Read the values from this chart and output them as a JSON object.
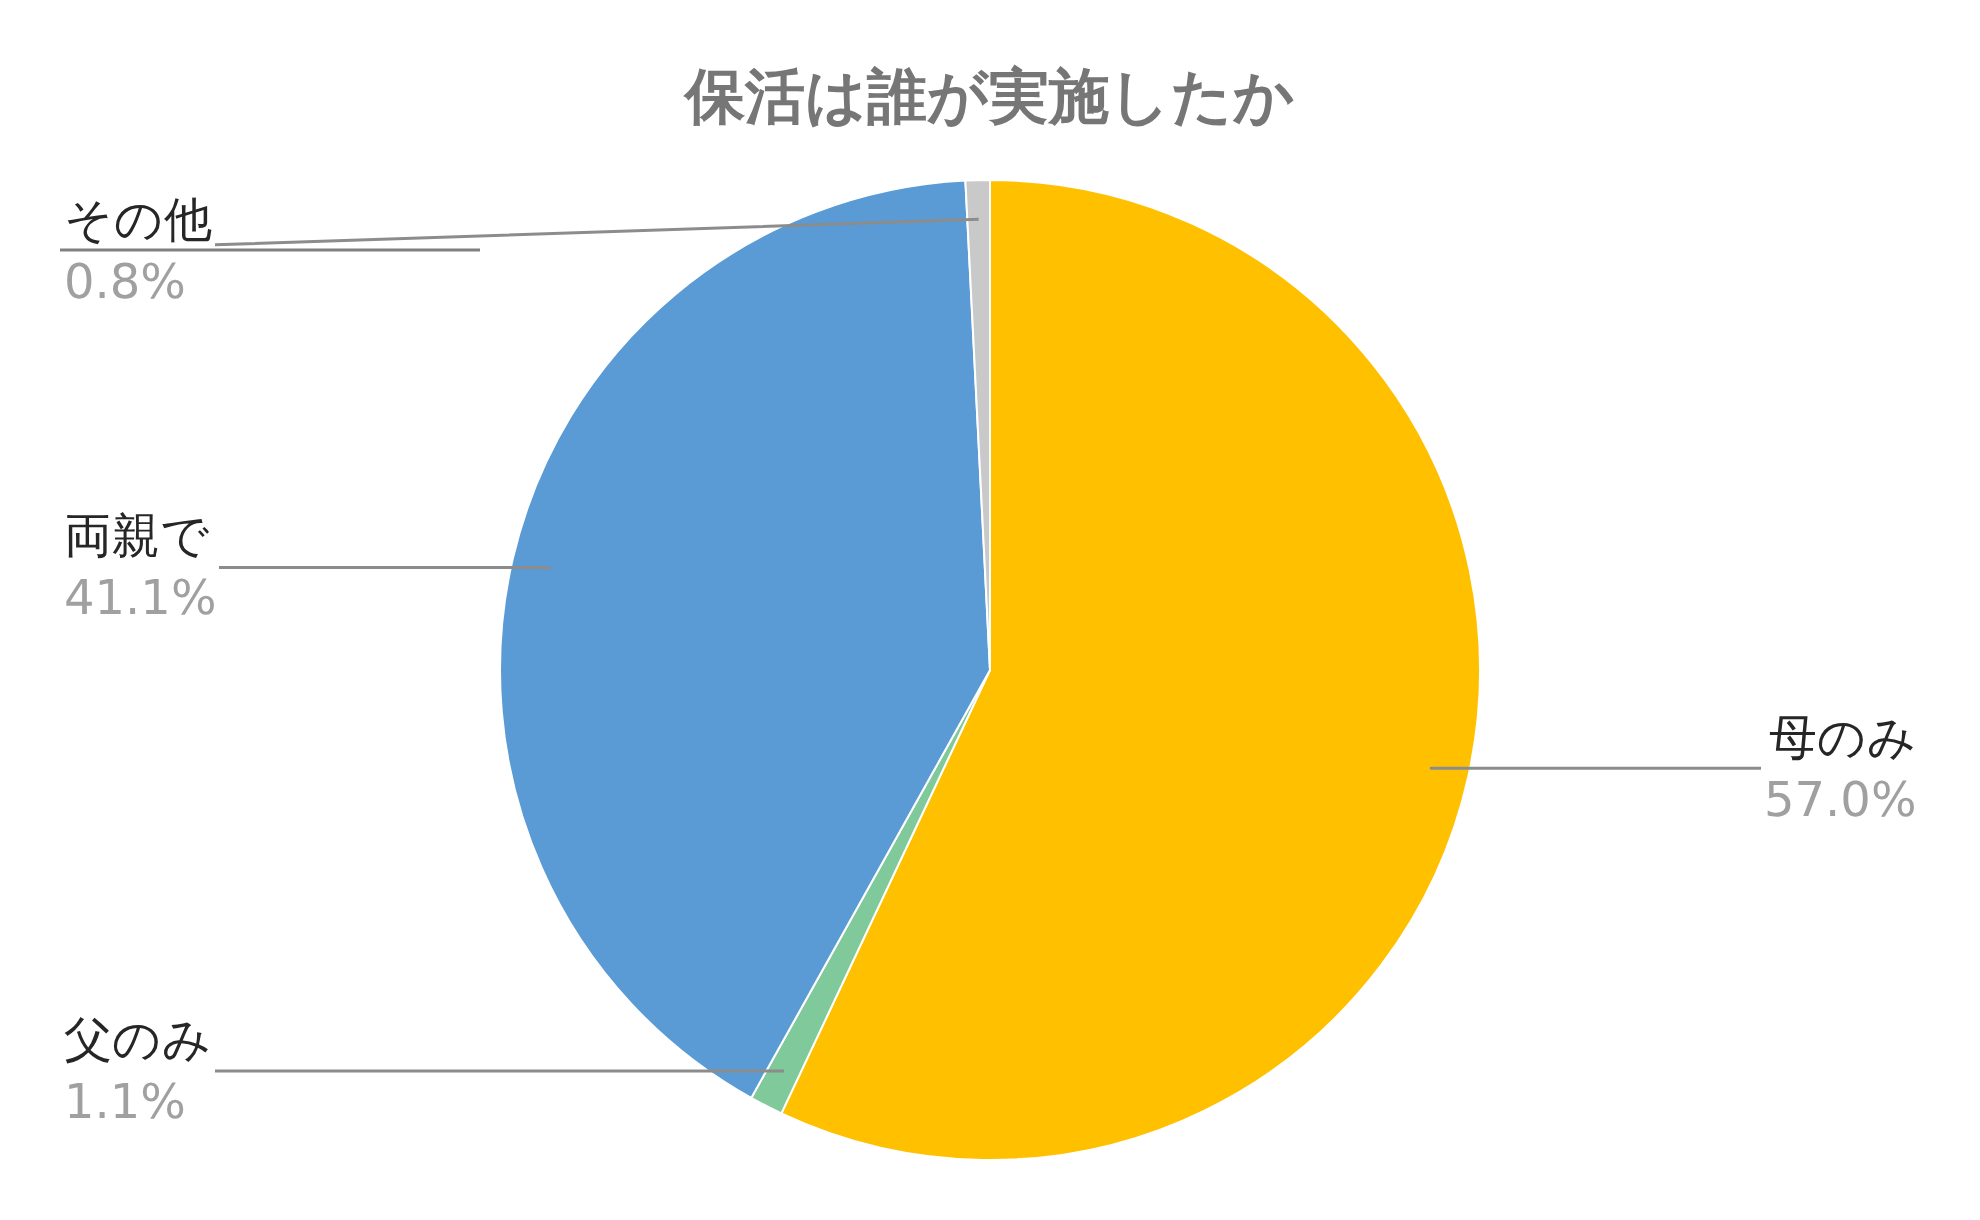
{
  "chart_data": {
    "type": "pie",
    "title": "保活は誰が実施したか",
    "categories": [
      "母のみ",
      "父のみ",
      "両親で",
      "その他"
    ],
    "values": [
      57.0,
      1.1,
      41.1,
      0.8
    ],
    "value_labels": [
      "57.0%",
      "1.1%",
      "41.1%",
      "0.8%"
    ],
    "colors": [
      "#ffc000",
      "#7fc99b",
      "#5b9bd5",
      "#c9c9c9"
    ],
    "legend": false
  }
}
